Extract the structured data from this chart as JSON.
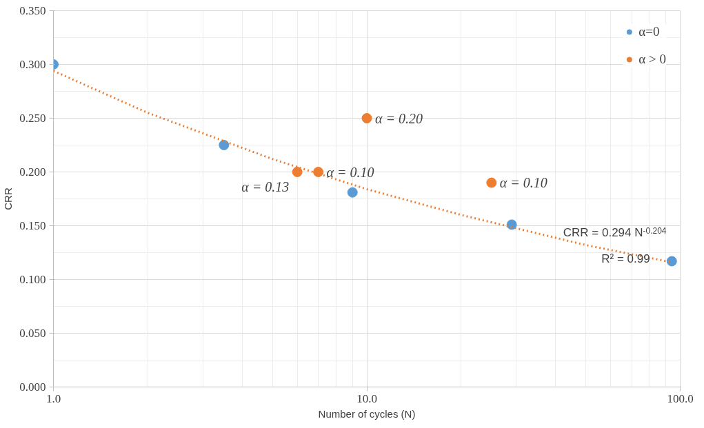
{
  "chart_data": {
    "type": "scatter",
    "xlabel": "Number of cycles (N)",
    "ylabel": "CRR",
    "log": "x",
    "xlim": [
      1,
      100
    ],
    "ylim": [
      0,
      0.35
    ],
    "xticks": [
      {
        "value": 1,
        "label": "1.0"
      },
      {
        "value": 10,
        "label": "10.0"
      },
      {
        "value": 100,
        "label": "100.0"
      }
    ],
    "yticks": [
      {
        "value": 0,
        "label": "0.000"
      },
      {
        "value": 0.05,
        "label": "0.050"
      },
      {
        "value": 0.1,
        "label": "0.100"
      },
      {
        "value": 0.15,
        "label": "0.150"
      },
      {
        "value": 0.2,
        "label": "0.200"
      },
      {
        "value": 0.25,
        "label": "0.250"
      },
      {
        "value": 0.3,
        "label": "0.300"
      },
      {
        "value": 0.35,
        "label": "0.350"
      }
    ],
    "grid": true,
    "legend": "top right",
    "marker": "circle",
    "series": [
      {
        "name": "α=0",
        "color": "#5b9bd5",
        "x": [
          1,
          3.5,
          9,
          29,
          94
        ],
        "values": [
          0.3,
          0.225,
          0.181,
          0.151,
          0.117
        ]
      },
      {
        "name": "α > 0",
        "color": "#ed7d31",
        "x": [
          6,
          7,
          10,
          25
        ],
        "values": [
          0.2,
          0.2,
          0.25,
          0.19
        ]
      },
      {
        "type": "line",
        "color": "#ed7d31",
        "line_style": "dotted",
        "marker": "none",
        "x": [
          1,
          2,
          5,
          10,
          20,
          50,
          94
        ],
        "values": [
          0.294,
          0.255,
          0.212,
          0.184,
          0.16,
          0.132,
          0.116
        ]
      }
    ],
    "annotations": [
      {
        "text": "α = 0.13",
        "x": 6,
        "y": 0.2
      },
      {
        "text": "α = 0.10",
        "x": 7,
        "y": 0.2
      },
      {
        "text": "α = 0.20",
        "x": 10,
        "y": 0.25
      },
      {
        "text": "α = 0.10",
        "x": 25,
        "y": 0.19
      },
      "CRR = 0.294 N$^{-0.204}$",
      "R² = 0.99"
    ]
  }
}
